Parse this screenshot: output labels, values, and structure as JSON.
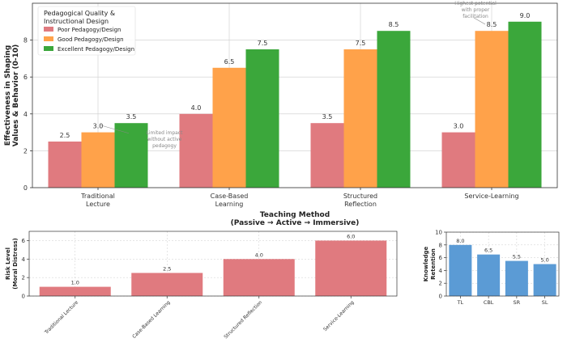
{
  "colors": {
    "poor": "#e07a7f",
    "good": "#ffa24a",
    "excellent": "#3ba73b",
    "retention": "#5b9bd5",
    "grid": "#cccccc",
    "annotation": "#888888"
  },
  "chart_data": [
    {
      "type": "bar",
      "categories": [
        "Traditional\nLecture",
        "Case-Based\nLearning",
        "Structured\nReflection",
        "Service-Learning"
      ],
      "series": [
        {
          "name": "Poor Pedagogy/Design",
          "values": [
            2.5,
            4.0,
            3.5,
            3.0
          ]
        },
        {
          "name": "Good Pedagogy/Design",
          "values": [
            3.0,
            6.5,
            7.5,
            8.5
          ]
        },
        {
          "name": "Excellent Pedagogy/Design",
          "values": [
            3.5,
            7.5,
            8.5,
            9.0
          ]
        }
      ],
      "value_labels": [
        [
          "2.5",
          "4.0",
          "3.5",
          "3.0"
        ],
        [
          "3.0",
          "6.5",
          "7.5",
          "8.5"
        ],
        [
          "3.5",
          "7.5",
          "8.5",
          "9.0"
        ]
      ],
      "legend_title": [
        "Pedagogical Quality &",
        "Instructional Design"
      ],
      "legend_position": "top-left",
      "xlabel": [
        "Teaching Method",
        "(Passive → Active → Immersive)"
      ],
      "ylabel": [
        "Effectiveness in Shaping",
        "Values & Behavior (0-10)"
      ],
      "ylim": [
        0,
        10
      ],
      "yticks": [
        0,
        2,
        4,
        6,
        8
      ],
      "grid": true,
      "annotations": [
        {
          "text": [
            "Limited impact",
            "without active",
            "pedagogy"
          ],
          "category": 0
        },
        {
          "text": [
            "Highest potential",
            "with proper",
            "facilitation"
          ],
          "category": 3
        }
      ]
    },
    {
      "type": "bar",
      "categories": [
        "Traditional Lecture",
        "Case-Based Learning",
        "Structured Reflection",
        "Service-Learning"
      ],
      "values": [
        1.0,
        2.5,
        4.0,
        6.0
      ],
      "value_labels": [
        "1.0",
        "2.5",
        "4.0",
        "6.0"
      ],
      "ylabel": [
        "Risk Level",
        "(Moral Distress)"
      ],
      "ylim": [
        0,
        7
      ],
      "yticks": [
        0,
        2,
        4,
        6
      ],
      "grid": true
    },
    {
      "type": "bar",
      "categories": [
        "TL",
        "CBL",
        "SR",
        "SL"
      ],
      "values": [
        8.0,
        6.5,
        5.5,
        5.0
      ],
      "value_labels": [
        "8.0",
        "6.5",
        "5.5",
        "5.0"
      ],
      "ylabel": [
        "Knowledge",
        "Retention"
      ],
      "ylim": [
        0,
        10
      ],
      "yticks": [
        0,
        2,
        4,
        6,
        8,
        10
      ],
      "grid": true
    }
  ]
}
